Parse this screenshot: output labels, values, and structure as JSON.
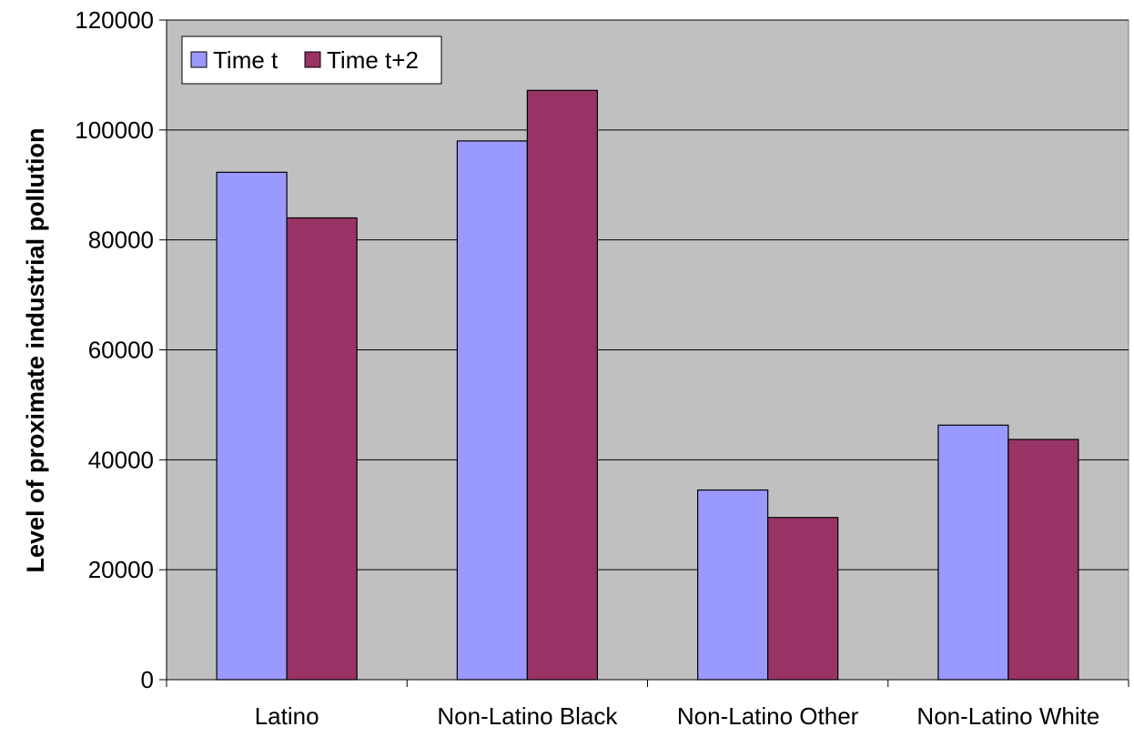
{
  "chart_data": {
    "type": "bar",
    "categories": [
      "Latino",
      "Non-Latino Black",
      "Non-Latino Other",
      "Non-Latino White"
    ],
    "series": [
      {
        "name": "Time t",
        "values": [
          92300,
          98000,
          34500,
          46300
        ],
        "color": "#9999ff"
      },
      {
        "name": "Time t+2",
        "values": [
          84000,
          107200,
          29500,
          43700
        ],
        "color": "#993366"
      }
    ],
    "xlabel": "",
    "ylabel": "Level of proximate industrial pollution",
    "ylim": [
      0,
      120000
    ],
    "yticks": [
      0,
      20000,
      40000,
      60000,
      80000,
      100000,
      120000
    ],
    "grid": true,
    "legend_position": "top-left",
    "plot_background": "#c0c0c0"
  }
}
